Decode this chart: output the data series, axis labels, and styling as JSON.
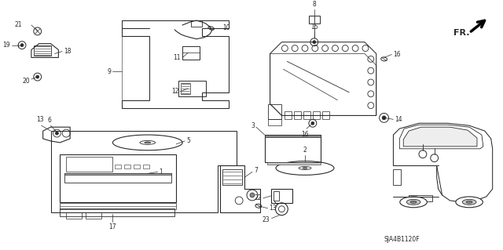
{
  "background_color": "#ffffff",
  "diagram_code": "SJA4B1120F",
  "line_color": "#2a2a2a",
  "lw": 0.75
}
